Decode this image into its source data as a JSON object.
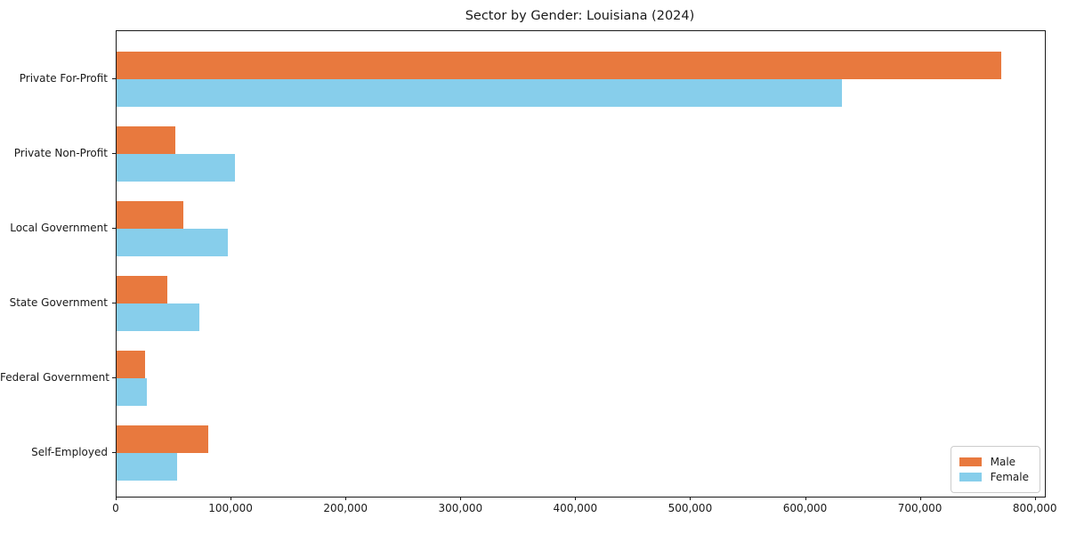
{
  "figure": {
    "title": "Sector by Gender: Louisiana (2024)"
  },
  "colors": {
    "male": "#e8793e",
    "female": "#87ceeb",
    "spine": "#1a1a1a",
    "legend_border": "#cccccc"
  },
  "chart_data": {
    "type": "bar",
    "orientation": "horizontal",
    "title": "Sector by Gender: Louisiana (2024)",
    "categories": [
      "Private For-Profit",
      "Private Non-Profit",
      "Local Government",
      "State Government",
      "Federal Government",
      "Self-Employed"
    ],
    "series": [
      {
        "name": "Male",
        "color": "#e8793e",
        "values": [
          770000,
          51000,
          58000,
          44000,
          25000,
          80000
        ]
      },
      {
        "name": "Female",
        "color": "#87ceeb",
        "values": [
          631000,
          103000,
          97000,
          72000,
          26000,
          53000
        ]
      }
    ],
    "xlabel": "",
    "ylabel": "",
    "xlim": [
      0,
      808000
    ],
    "xticks": [
      0,
      100000,
      200000,
      300000,
      400000,
      500000,
      600000,
      700000,
      800000
    ],
    "xtick_labels": [
      "0",
      "100,000",
      "200,000",
      "300,000",
      "400,000",
      "500,000",
      "600,000",
      "700,000",
      "800,000"
    ],
    "grid": false,
    "legend_position": "lower right"
  }
}
